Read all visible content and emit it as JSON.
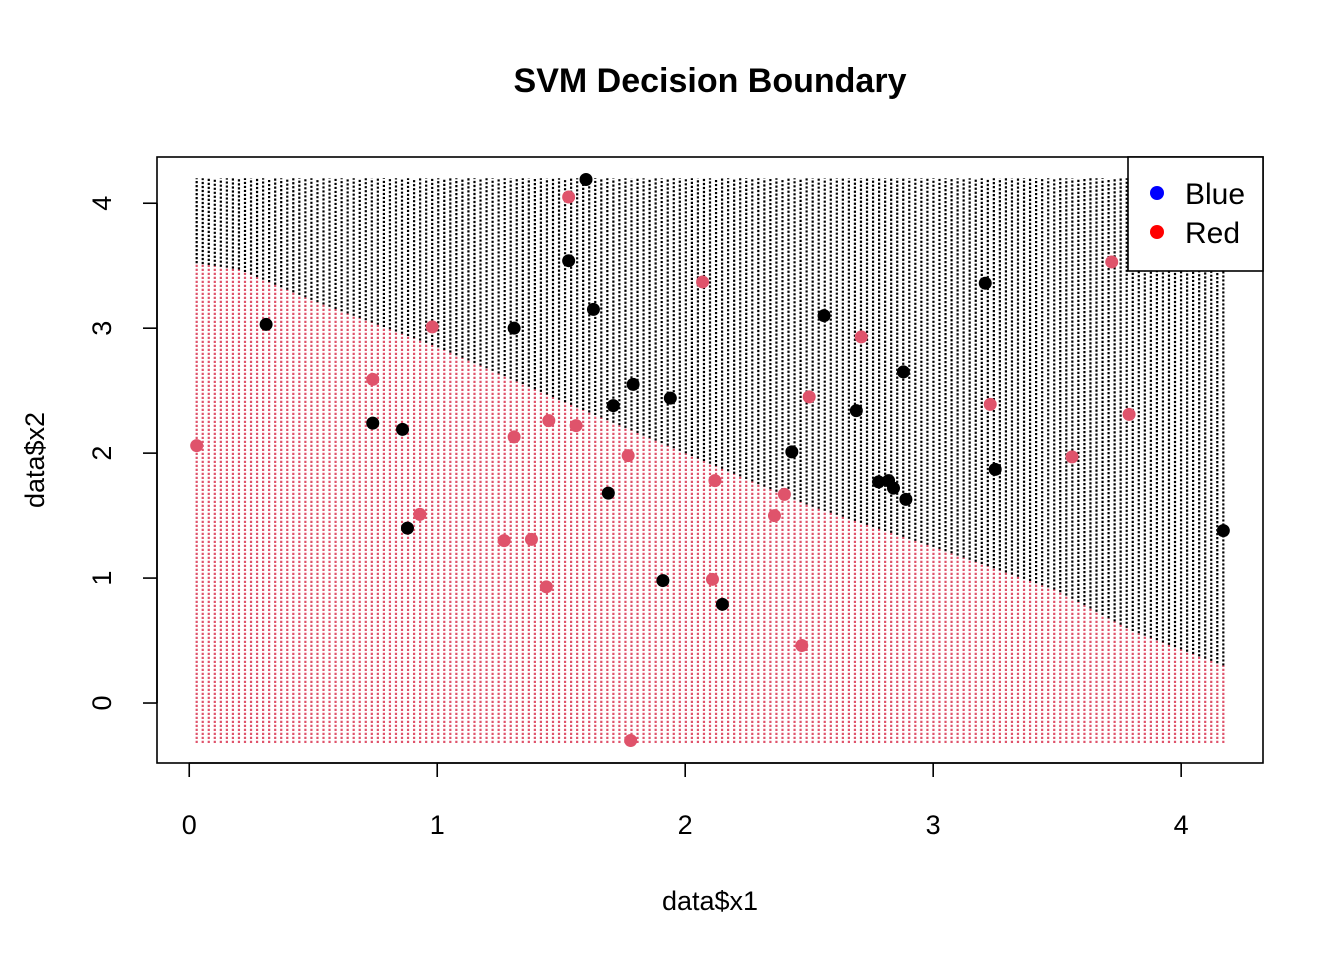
{
  "chart_data": {
    "type": "scatter",
    "title": "SVM Decision Boundary",
    "xlabel": "data$x1",
    "ylabel": "data$x2",
    "xlim": [
      -0.13,
      4.33
    ],
    "ylim": [
      -0.48,
      4.37
    ],
    "xticks": [
      0,
      1,
      2,
      3,
      4
    ],
    "yticks": [
      0,
      1,
      2,
      3,
      4
    ],
    "grid": false,
    "legend_position": "top-right",
    "legend": [
      {
        "label": "Blue",
        "color": "#0000FF"
      },
      {
        "label": "Red",
        "color": "#FF0000"
      }
    ],
    "colors": {
      "class_black": "#000000",
      "class_red": "#DF536B"
    },
    "decision_grid": {
      "x_range": [
        0.03,
        4.17
      ],
      "y_range": [
        -0.32,
        4.2
      ],
      "boundary_x": [
        0.03,
        0.2,
        0.5,
        1.0,
        1.5,
        2.0,
        2.5,
        3.0,
        3.5,
        3.8,
        4.17
      ],
      "boundary_y": [
        3.52,
        3.47,
        3.22,
        2.85,
        2.42,
        2.0,
        1.58,
        1.25,
        0.9,
        0.58,
        0.3
      ]
    },
    "series": [
      {
        "name": "",
        "color": "#000000",
        "x": [
          1.6,
          1.53,
          1.63,
          1.31,
          0.31,
          0.74,
          0.86,
          0.88,
          1.79,
          1.71,
          1.94,
          2.56,
          2.88,
          2.69,
          2.43,
          2.78,
          2.82,
          2.84,
          2.89,
          3.21,
          3.25,
          4.17,
          1.69,
          1.91,
          2.15
        ],
        "y": [
          4.19,
          3.54,
          3.15,
          3.0,
          3.03,
          2.24,
          2.19,
          1.4,
          2.55,
          2.38,
          2.44,
          3.1,
          2.65,
          2.34,
          2.01,
          1.77,
          1.78,
          1.72,
          1.63,
          3.36,
          1.87,
          1.38,
          1.68,
          0.98,
          0.79
        ]
      },
      {
        "name": "",
        "color": "#DF536B",
        "x": [
          1.53,
          2.07,
          0.98,
          0.74,
          0.03,
          0.93,
          1.27,
          1.38,
          1.44,
          1.31,
          1.45,
          1.56,
          1.77,
          2.12,
          2.11,
          1.78,
          2.36,
          2.4,
          2.5,
          2.71,
          2.47,
          3.23,
          3.72,
          3.79,
          3.56
        ],
        "y": [
          4.05,
          3.37,
          3.01,
          2.59,
          2.06,
          1.51,
          1.3,
          1.31,
          0.93,
          2.13,
          2.26,
          2.22,
          1.98,
          1.78,
          0.99,
          -0.3,
          1.5,
          1.67,
          2.45,
          2.93,
          0.46,
          2.39,
          3.53,
          2.31,
          1.97
        ]
      }
    ]
  }
}
